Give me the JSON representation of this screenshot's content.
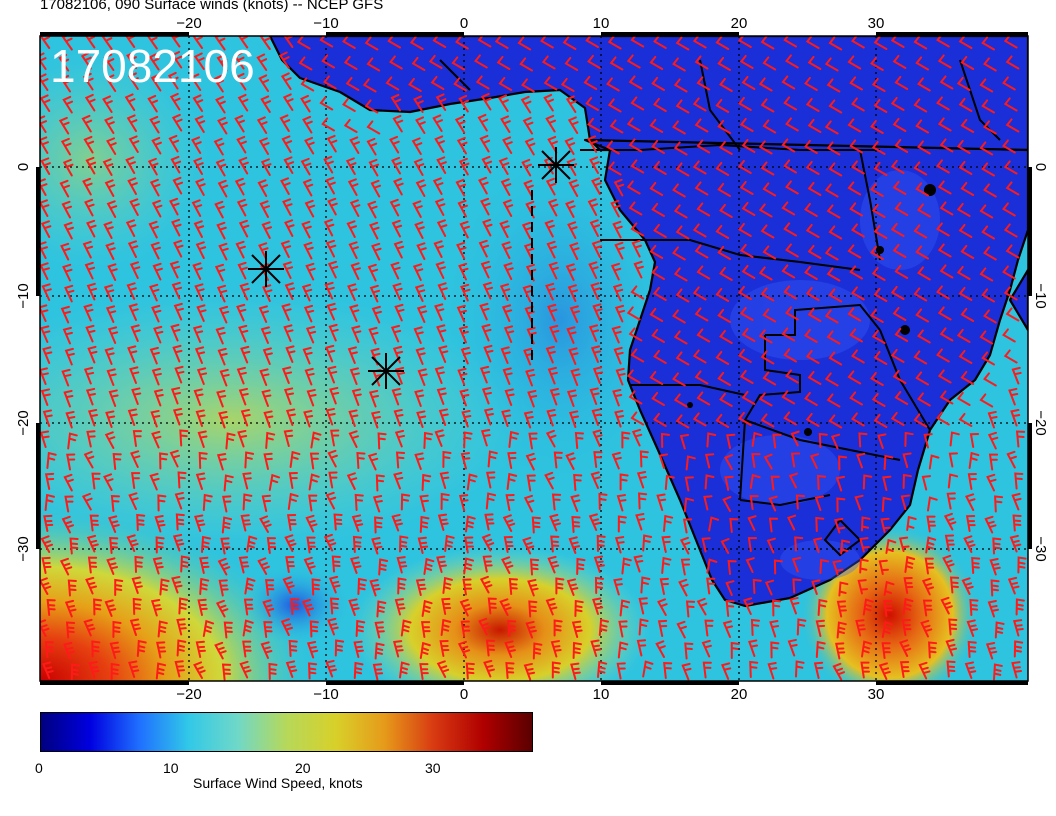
{
  "title": "17082106, 090 Surface winds (knots) -- NCEP GFS",
  "stamp": "17082106",
  "lon_ticks": [
    "−20",
    "−10",
    "0",
    "10",
    "20",
    "30"
  ],
  "lat_ticks": [
    "0",
    "−10",
    "−20",
    "−30"
  ],
  "colorbar": {
    "title": "Surface Wind Speed, knots",
    "ticks": [
      "0",
      "10",
      "20",
      "30"
    ],
    "colors": [
      "#00007f",
      "#0000e0",
      "#1f6fff",
      "#31c8e8",
      "#6fd8c8",
      "#b6d85a",
      "#d8d02a",
      "#e69a1a",
      "#d83a12",
      "#b00000",
      "#5a0000"
    ]
  },
  "colors": {
    "ocean_base": "#2ec3df",
    "land_base": "#1a2fd8",
    "barb": "#ff1a1a",
    "grid": "#000000"
  },
  "markers": [
    "storm-marker-1",
    "storm-marker-2",
    "storm-marker-3"
  ],
  "cursor_icon": "crosshair-icon"
}
